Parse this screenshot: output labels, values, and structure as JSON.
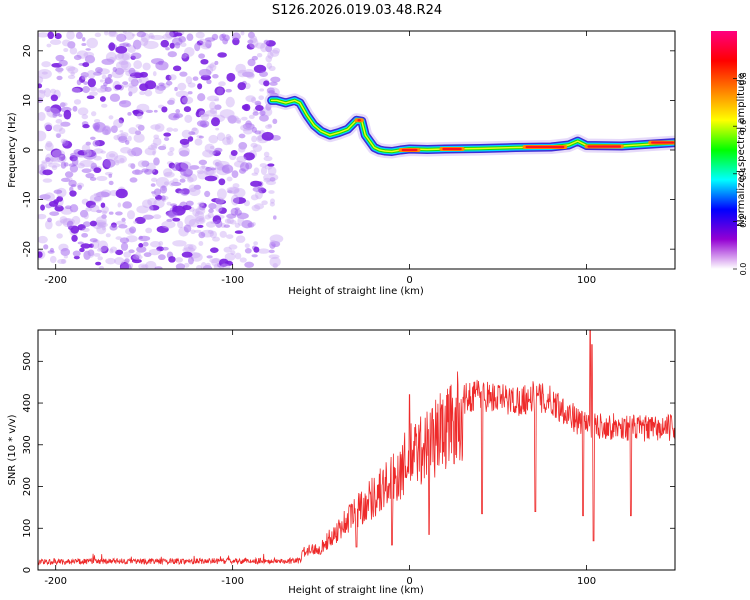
{
  "title": "S126.2026.019.03.48.R24",
  "chart_data": [
    {
      "type": "heatmap",
      "title": "S126.2026.019.03.48.R24",
      "xlabel": "Height of straight line (km)",
      "ylabel": "Frequency (Hz)",
      "xlim": [
        -210,
        150
      ],
      "ylim": [
        -24,
        24
      ],
      "x_ticks": [
        -200,
        -100,
        0,
        100
      ],
      "x_tick_labels": [
        "-200",
        "-100",
        "0",
        "100"
      ],
      "y_ticks": [
        20,
        10,
        0,
        -10,
        -20
      ],
      "y_tick_labels": [
        "20",
        "10",
        "0",
        "-10",
        "-20"
      ],
      "noise_region_km": [
        -210,
        -75
      ],
      "ridge": {
        "x_km": [
          -78,
          -75,
          -70,
          -65,
          -62,
          -58,
          -54,
          -50,
          -45,
          -40,
          -35,
          -30,
          -27,
          -25,
          -22,
          -20,
          -17,
          -14,
          -10,
          -5,
          0,
          10,
          20,
          40,
          60,
          80,
          90,
          95,
          100,
          120,
          150
        ],
        "freq_hz": [
          10,
          10,
          9.5,
          10,
          9.5,
          7,
          5,
          3.8,
          3,
          3.5,
          4.2,
          6,
          5.8,
          3,
          1.5,
          0.5,
          0,
          -0.2,
          -0.3,
          0,
          0.2,
          0.1,
          0.2,
          0.3,
          0.5,
          0.6,
          1.0,
          1.8,
          0.9,
          0.8,
          1.5
        ]
      },
      "peak_segments": [
        {
          "x_km": [
            -5,
            5
          ],
          "freq_hz": 0
        },
        {
          "x_km": [
            18,
            30
          ],
          "freq_hz": 0.2
        },
        {
          "x_km": [
            65,
            88
          ],
          "freq_hz": 0.6
        },
        {
          "x_km": [
            100,
            120
          ],
          "freq_hz": 0.7
        },
        {
          "x_km": [
            136,
            150
          ],
          "freq_hz": 1.5
        },
        {
          "x_km": [
            -30,
            -27
          ],
          "freq_hz": 6
        }
      ],
      "colorbar": {
        "label": "Normalized spectral amplitude",
        "range": [
          0,
          1
        ],
        "ticks": [
          0.0,
          0.2,
          0.4,
          0.6,
          0.8
        ],
        "tick_labels": [
          "0.0",
          "0.2",
          "0.4",
          "0.6",
          "0.8"
        ],
        "colors": [
          "#ffffff",
          "#9400d3",
          "#0000ff",
          "#00ffff",
          "#00ff00",
          "#ffff00",
          "#ff8000",
          "#ff0000",
          "#ff0080"
        ]
      }
    },
    {
      "type": "line",
      "xlabel": "Height of straight line (km)",
      "ylabel": "SNR (10 * v/v)",
      "xlim": [
        -210,
        150
      ],
      "ylim": [
        0,
        575
      ],
      "x_ticks": [
        -200,
        -100,
        0,
        100
      ],
      "x_tick_labels": [
        "-200",
        "-100",
        "0",
        "100"
      ],
      "y_ticks": [
        0,
        100,
        200,
        300,
        400,
        500
      ],
      "y_tick_labels": [
        "0",
        "100",
        "200",
        "300",
        "400",
        "500"
      ],
      "color": "#ee2a2a",
      "envelope": {
        "x_km": [
          -210,
          -62,
          -60,
          -50,
          -40,
          -30,
          -20,
          -10,
          0,
          10,
          20,
          30,
          38,
          45,
          60,
          70,
          80,
          90,
          95,
          105,
          120,
          140,
          150
        ],
        "snr": [
          20,
          22,
          50,
          60,
          110,
          160,
          200,
          240,
          300,
          340,
          380,
          420,
          440,
          430,
          420,
          430,
          420,
          390,
          370,
          360,
          355,
          350,
          355
        ]
      },
      "dips": [
        {
          "x_km": -30,
          "snr": 55
        },
        {
          "x_km": -10,
          "snr": 60
        },
        {
          "x_km": 11,
          "snr": 85
        },
        {
          "x_km": 41,
          "snr": 135
        },
        {
          "x_km": 71,
          "snr": 140
        },
        {
          "x_km": 98,
          "snr": 130
        },
        {
          "x_km": 104,
          "snr": 70
        },
        {
          "x_km": 125,
          "snr": 130
        }
      ],
      "spikes": [
        {
          "x_km": 102,
          "snr": 575
        },
        {
          "x_km": 103,
          "snr": 540
        },
        {
          "x_km": 0,
          "snr": 420
        }
      ]
    }
  ]
}
